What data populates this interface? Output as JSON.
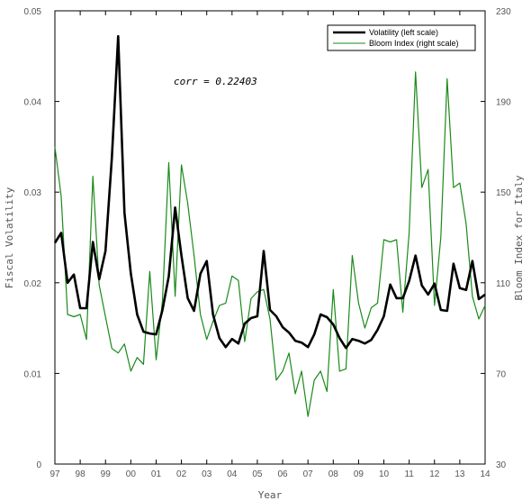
{
  "chart_data": {
    "type": "line",
    "xlabel": "Year",
    "ylabel_left": "Fiscal Volatility",
    "ylabel_right": "Bloom Index for Italy",
    "annotation": "corr = 0.22403",
    "x_range": [
      1997.0,
      2014.0
    ],
    "ylim_left": [
      0,
      0.05
    ],
    "ylim_right": [
      30,
      230
    ],
    "x_tick_labels": [
      "97",
      "98",
      "99",
      "00",
      "01",
      "02",
      "03",
      "04",
      "05",
      "06",
      "07",
      "08",
      "09",
      "10",
      "11",
      "12",
      "13",
      "14"
    ],
    "y_left_tick_labels": [
      "0",
      "0.01",
      "0.02",
      "0.03",
      "0.04",
      "0.05"
    ],
    "y_right_tick_labels": [
      "30",
      "70",
      "110",
      "150",
      "190",
      "230"
    ],
    "grid": false,
    "legend_position": "top-right",
    "series": [
      {
        "name": "Volatility (left scale)",
        "axis": "left",
        "color": "#000000",
        "x": [
          1997.0,
          1997.25,
          1997.5,
          1997.75,
          1998.0,
          1998.25,
          1998.5,
          1998.75,
          1999.0,
          1999.25,
          1999.5,
          1999.75,
          2000.0,
          2000.25,
          2000.5,
          2000.75,
          2001.0,
          2001.25,
          2001.5,
          2001.75,
          2002.0,
          2002.25,
          2002.5,
          2002.75,
          2003.0,
          2003.25,
          2003.5,
          2003.75,
          2004.0,
          2004.25,
          2004.5,
          2004.75,
          2005.0,
          2005.25,
          2005.5,
          2005.75,
          2006.0,
          2006.25,
          2006.5,
          2006.75,
          2007.0,
          2007.25,
          2007.5,
          2007.75,
          2008.0,
          2008.25,
          2008.5,
          2008.75,
          2009.0,
          2009.25,
          2009.5,
          2009.75,
          2010.0,
          2010.25,
          2010.5,
          2010.75,
          2011.0,
          2011.25,
          2011.5,
          2011.75,
          2012.0,
          2012.25,
          2012.5,
          2012.75,
          2013.0,
          2013.25,
          2013.5,
          2013.75,
          2014.0
        ],
        "values": [
          0.0244,
          0.0255,
          0.02,
          0.0209,
          0.0172,
          0.0172,
          0.0245,
          0.0204,
          0.0235,
          0.0338,
          0.0472,
          0.0277,
          0.021,
          0.0165,
          0.0146,
          0.0144,
          0.0143,
          0.017,
          0.0207,
          0.0283,
          0.023,
          0.0183,
          0.0169,
          0.021,
          0.0224,
          0.0165,
          0.0139,
          0.0129,
          0.0138,
          0.0133,
          0.0155,
          0.0161,
          0.0163,
          0.0235,
          0.017,
          0.0163,
          0.0151,
          0.0145,
          0.0136,
          0.0134,
          0.0129,
          0.0143,
          0.0165,
          0.0162,
          0.0154,
          0.0139,
          0.0128,
          0.0138,
          0.0136,
          0.0133,
          0.0137,
          0.0148,
          0.0163,
          0.0198,
          0.0183,
          0.0183,
          0.0202,
          0.023,
          0.0197,
          0.0187,
          0.0199,
          0.017,
          0.0169,
          0.0221,
          0.0194,
          0.0192,
          0.0224,
          0.0182,
          0.0187
        ]
      },
      {
        "name": "Bloom Index (right scale)",
        "axis": "right",
        "color": "#1a8a1a",
        "x": [
          1997.0,
          1997.25,
          1997.5,
          1997.75,
          1998.0,
          1998.25,
          1998.5,
          1998.75,
          1999.0,
          1999.25,
          1999.5,
          1999.75,
          2000.0,
          2000.25,
          2000.5,
          2000.75,
          2001.0,
          2001.25,
          2001.5,
          2001.75,
          2002.0,
          2002.25,
          2002.5,
          2002.75,
          2003.0,
          2003.25,
          2003.5,
          2003.75,
          2004.0,
          2004.25,
          2004.5,
          2004.75,
          2005.0,
          2005.25,
          2005.5,
          2005.75,
          2006.0,
          2006.25,
          2006.5,
          2006.75,
          2007.0,
          2007.25,
          2007.5,
          2007.75,
          2008.0,
          2008.25,
          2008.5,
          2008.75,
          2009.0,
          2009.25,
          2009.5,
          2009.75,
          2010.0,
          2010.25,
          2010.5,
          2010.75,
          2011.0,
          2011.25,
          2011.5,
          2011.75,
          2012.0,
          2012.25,
          2012.5,
          2012.75,
          2013.0,
          2013.25,
          2013.5,
          2013.75,
          2014.0
        ],
        "values": [
          170,
          148,
          96,
          95,
          96,
          85,
          157,
          109,
          95,
          81,
          79,
          83,
          71,
          77,
          74,
          115,
          76,
          102,
          163,
          104,
          162,
          145,
          122,
          96,
          85,
          93,
          100,
          101,
          113,
          111,
          84,
          103,
          106,
          107,
          94,
          67,
          71,
          79,
          61,
          71,
          51,
          67,
          71,
          62,
          107,
          71,
          72,
          122,
          101,
          90,
          99,
          101,
          129,
          128,
          129,
          97,
          132,
          203,
          152,
          160,
          100,
          130,
          200,
          152,
          154,
          136,
          104,
          94,
          100
        ]
      }
    ]
  }
}
